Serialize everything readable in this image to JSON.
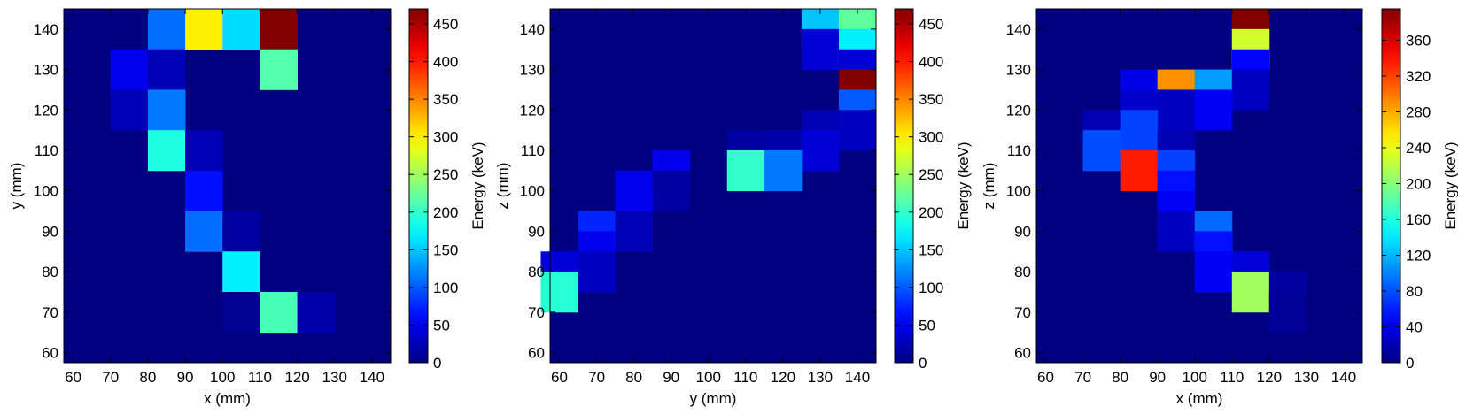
{
  "chart_data": [
    {
      "type": "heatmap",
      "xlabel": "x (mm)",
      "ylabel": "y (mm)",
      "colorbar_label": "Energy (keV)",
      "colormap": "jet",
      "xlim": [
        57.5,
        145
      ],
      "ylim": [
        57.5,
        145
      ],
      "x_ticks": [
        60,
        70,
        80,
        90,
        100,
        110,
        120,
        130,
        140
      ],
      "y_ticks": [
        60,
        70,
        80,
        90,
        100,
        110,
        120,
        130,
        140
      ],
      "vmin": 0,
      "vmax": 470,
      "colorbar_ticks": [
        0,
        50,
        100,
        150,
        200,
        250,
        300,
        350,
        400,
        450
      ],
      "cell_size": 10,
      "cells": [
        {
          "x": 85,
          "y": 140,
          "value": 110
        },
        {
          "x": 95,
          "y": 140,
          "value": 300
        },
        {
          "x": 105,
          "y": 140,
          "value": 160
        },
        {
          "x": 115,
          "y": 140,
          "value": 470
        },
        {
          "x": 75,
          "y": 130,
          "value": 50
        },
        {
          "x": 85,
          "y": 130,
          "value": 25
        },
        {
          "x": 115,
          "y": 130,
          "value": 215
        },
        {
          "x": 75,
          "y": 120,
          "value": 25
        },
        {
          "x": 85,
          "y": 120,
          "value": 115
        },
        {
          "x": 85,
          "y": 110,
          "value": 190
        },
        {
          "x": 95,
          "y": 110,
          "value": 25
        },
        {
          "x": 95,
          "y": 100,
          "value": 65
        },
        {
          "x": 95,
          "y": 90,
          "value": 110
        },
        {
          "x": 105,
          "y": 90,
          "value": 15
        },
        {
          "x": 105,
          "y": 80,
          "value": 170
        },
        {
          "x": 105,
          "y": 70,
          "value": 8
        },
        {
          "x": 115,
          "y": 70,
          "value": 210
        },
        {
          "x": 125,
          "y": 70,
          "value": 20
        }
      ]
    },
    {
      "type": "heatmap",
      "xlabel": "y (mm)",
      "ylabel": "z (mm)",
      "colorbar_label": "Energy (keV)",
      "colormap": "jet",
      "xlim": [
        57.5,
        145
      ],
      "ylim": [
        57.5,
        145
      ],
      "x_ticks": [
        60,
        70,
        80,
        90,
        100,
        110,
        120,
        130,
        140
      ],
      "y_ticks": [
        60,
        70,
        80,
        90,
        100,
        110,
        120,
        130,
        140
      ],
      "vmin": 0,
      "vmax": 470,
      "colorbar_ticks": [
        0,
        50,
        100,
        150,
        200,
        250,
        300,
        350,
        400,
        450
      ],
      "cell_size": 10,
      "cells": [
        {
          "x": 130,
          "y": 140,
          "value": 150
        },
        {
          "x": 140,
          "y": 140,
          "value": 220
        },
        {
          "x": 130,
          "y": 135,
          "value": 40
        },
        {
          "x": 140,
          "y": 135,
          "value": 170
        },
        {
          "x": 140,
          "y": 130,
          "value": 40
        },
        {
          "x": 140,
          "y": 125,
          "value": 470
        },
        {
          "x": 140,
          "y": 120,
          "value": 100
        },
        {
          "x": 130,
          "y": 115,
          "value": 25
        },
        {
          "x": 140,
          "y": 115,
          "value": 30
        },
        {
          "x": 110,
          "y": 110,
          "value": 15
        },
        {
          "x": 120,
          "y": 110,
          "value": 20
        },
        {
          "x": 130,
          "y": 110,
          "value": 40
        },
        {
          "x": 90,
          "y": 105,
          "value": 50
        },
        {
          "x": 110,
          "y": 105,
          "value": 200
        },
        {
          "x": 120,
          "y": 105,
          "value": 115
        },
        {
          "x": 80,
          "y": 100,
          "value": 50
        },
        {
          "x": 90,
          "y": 100,
          "value": 15
        },
        {
          "x": 80,
          "y": 95,
          "value": 50
        },
        {
          "x": 70,
          "y": 90,
          "value": 75
        },
        {
          "x": 80,
          "y": 90,
          "value": 25
        },
        {
          "x": 70,
          "y": 85,
          "value": 50
        },
        {
          "x": 60,
          "y": 80,
          "value": 40
        },
        {
          "x": 70,
          "y": 80,
          "value": 30
        },
        {
          "x": 60,
          "y": 75,
          "value": 195
        }
      ]
    },
    {
      "type": "heatmap",
      "xlabel": "x (mm)",
      "ylabel": "z (mm)",
      "colorbar_label": "Energy (keV)",
      "colormap": "jet",
      "xlim": [
        57.5,
        145
      ],
      "ylim": [
        57.5,
        145
      ],
      "x_ticks": [
        60,
        70,
        80,
        90,
        100,
        110,
        120,
        130,
        140
      ],
      "y_ticks": [
        60,
        70,
        80,
        90,
        100,
        110,
        120,
        130,
        140
      ],
      "vmin": 0,
      "vmax": 395,
      "colorbar_ticks": [
        0,
        40,
        80,
        120,
        160,
        200,
        240,
        280,
        320,
        360
      ],
      "cell_size": 10,
      "cells": [
        {
          "x": 115,
          "y": 140,
          "value": 395
        },
        {
          "x": 115,
          "y": 135,
          "value": 230
        },
        {
          "x": 115,
          "y": 130,
          "value": 50
        },
        {
          "x": 85,
          "y": 125,
          "value": 40
        },
        {
          "x": 95,
          "y": 125,
          "value": 290
        },
        {
          "x": 105,
          "y": 125,
          "value": 110
        },
        {
          "x": 115,
          "y": 125,
          "value": 25
        },
        {
          "x": 85,
          "y": 120,
          "value": 30
        },
        {
          "x": 95,
          "y": 120,
          "value": 25
        },
        {
          "x": 105,
          "y": 120,
          "value": 45
        },
        {
          "x": 75,
          "y": 115,
          "value": 20
        },
        {
          "x": 85,
          "y": 115,
          "value": 75
        },
        {
          "x": 75,
          "y": 110,
          "value": 80
        },
        {
          "x": 95,
          "y": 110,
          "value": 20
        },
        {
          "x": 85,
          "y": 105,
          "value": 335
        },
        {
          "x": 95,
          "y": 105,
          "value": 75
        },
        {
          "x": 95,
          "y": 100,
          "value": 55
        },
        {
          "x": 95,
          "y": 95,
          "value": 45
        },
        {
          "x": 95,
          "y": 90,
          "value": 25
        },
        {
          "x": 105,
          "y": 90,
          "value": 90
        },
        {
          "x": 105,
          "y": 85,
          "value": 55
        },
        {
          "x": 105,
          "y": 80,
          "value": 45
        },
        {
          "x": 115,
          "y": 80,
          "value": 35
        },
        {
          "x": 115,
          "y": 75,
          "value": 210
        },
        {
          "x": 125,
          "y": 75,
          "value": 12
        },
        {
          "x": 125,
          "y": 70,
          "value": 10
        }
      ]
    }
  ]
}
